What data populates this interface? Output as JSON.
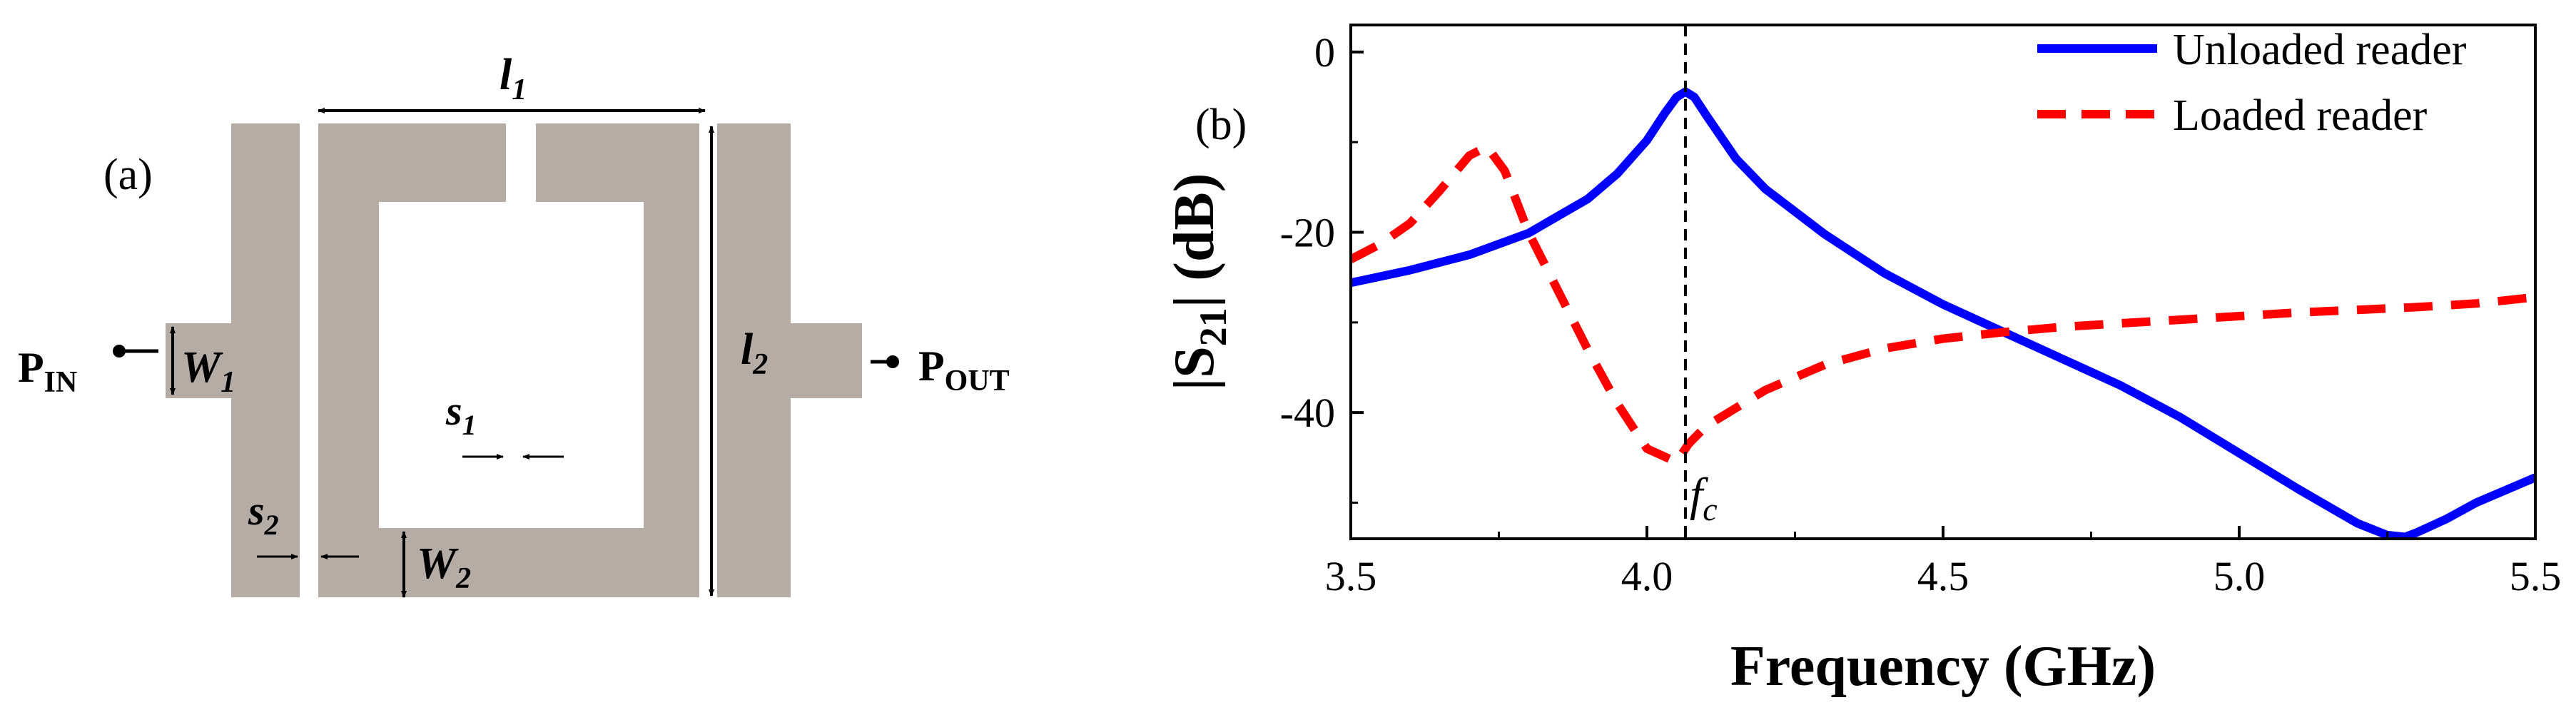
{
  "panel_a": {
    "label": "(a)",
    "dim_l1": "l",
    "dim_l1_sub": "1",
    "dim_l2": "l",
    "dim_l2_sub": "2",
    "dim_w1": "W",
    "dim_w1_sub": "1",
    "dim_w2": "W",
    "dim_w2_sub": "2",
    "dim_s1": "s",
    "dim_s1_sub": "1",
    "dim_s2": "s",
    "dim_s2_sub": "2",
    "port_in": "P",
    "port_in_sub": "IN",
    "port_out": "P",
    "port_out_sub": "OUT",
    "metal_color": "#b5aca5"
  },
  "chart_data": {
    "type": "line",
    "panel_label": "(b)",
    "title": "",
    "xlabel": "Frequency (GHz)",
    "ylabel_pre": "|S",
    "ylabel_sub": "21",
    "ylabel_post": "| (dB)",
    "xlim": [
      3.5,
      5.5
    ],
    "ylim": [
      -54,
      3
    ],
    "xticks": [
      3.5,
      4.0,
      4.5,
      5.0,
      5.5
    ],
    "xtick_labels": [
      "3.5",
      "4.0",
      "4.5",
      "5.0",
      "5.5"
    ],
    "yticks": [
      0,
      -20,
      -40
    ],
    "ytick_labels": [
      "0",
      "-20",
      "-40"
    ],
    "grid": false,
    "legend_position": "top-right",
    "vline": {
      "x": 4.065,
      "label": "f",
      "label_sub": "c"
    },
    "series": [
      {
        "name": "Unloaded reader",
        "color": "#0000ff",
        "style": "solid",
        "x": [
          3.5,
          3.6,
          3.7,
          3.8,
          3.9,
          3.95,
          4.0,
          4.03,
          4.05,
          4.065,
          4.08,
          4.1,
          4.15,
          4.2,
          4.3,
          4.4,
          4.5,
          4.6,
          4.7,
          4.8,
          4.9,
          5.0,
          5.1,
          5.2,
          5.25,
          5.28,
          5.3,
          5.35,
          5.4,
          5.5
        ],
        "y": [
          -25.6,
          -24.2,
          -22.5,
          -20.1,
          -16.3,
          -13.5,
          -9.8,
          -6.8,
          -5.0,
          -4.4,
          -5.0,
          -7.0,
          -11.8,
          -15.2,
          -20.2,
          -24.5,
          -28.0,
          -31.0,
          -34.0,
          -37.0,
          -40.5,
          -44.5,
          -48.5,
          -52.3,
          -53.6,
          -53.8,
          -53.3,
          -51.8,
          -50.0,
          -47.2
        ]
      },
      {
        "name": "Loaded reader",
        "color": "#ff0000",
        "style": "dashed",
        "x": [
          3.5,
          3.55,
          3.6,
          3.65,
          3.7,
          3.73,
          3.76,
          3.8,
          3.85,
          3.9,
          3.95,
          4.0,
          4.05,
          4.07,
          4.1,
          4.2,
          4.3,
          4.4,
          4.5,
          4.6,
          4.7,
          4.8,
          4.9,
          5.0,
          5.1,
          5.2,
          5.3,
          5.4,
          5.5
        ],
        "y": [
          -23.0,
          -21.3,
          -19.0,
          -15.4,
          -11.5,
          -10.5,
          -13.2,
          -20.0,
          -26.5,
          -33.0,
          -39.0,
          -44.0,
          -45.5,
          -43.5,
          -41.5,
          -37.5,
          -34.7,
          -32.9,
          -31.8,
          -31.1,
          -30.5,
          -30.1,
          -29.7,
          -29.3,
          -28.9,
          -28.6,
          -28.3,
          -27.9,
          -27.2
        ]
      }
    ]
  }
}
